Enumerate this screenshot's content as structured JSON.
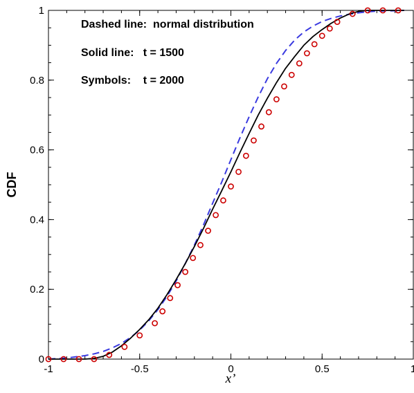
{
  "chart_data": {
    "type": "line",
    "title": "",
    "xlabel": "x’",
    "ylabel": "CDF",
    "xlim": [
      -1,
      1
    ],
    "ylim": [
      0,
      1
    ],
    "xticks": [
      -1,
      -0.5,
      0,
      0.5,
      1
    ],
    "xtick_labels": [
      "-1",
      "-0.5",
      "0",
      "0.5",
      "1"
    ],
    "yticks": [
      0,
      0.2,
      0.4,
      0.6,
      0.8,
      1
    ],
    "ytick_labels": [
      "0",
      "0.2",
      "0.4",
      "0.6",
      "0.8",
      "1"
    ],
    "grid": false,
    "annotations": [
      "Dashed line:  normal distribution",
      "Solid line:   t = 1500",
      "Symbols:    t = 2000"
    ],
    "series": [
      {
        "style": "dashed",
        "color": "#3a3ae0",
        "x": [
          -1.0,
          -0.9,
          -0.8,
          -0.75,
          -0.7,
          -0.65,
          -0.6,
          -0.55,
          -0.5,
          -0.45,
          -0.4,
          -0.35,
          -0.3,
          -0.25,
          -0.2,
          -0.15,
          -0.1,
          -0.05,
          0.0,
          0.05,
          0.1,
          0.15,
          0.2,
          0.25,
          0.3,
          0.35,
          0.4,
          0.45,
          0.5,
          0.55,
          0.6,
          0.65,
          0.7,
          0.75,
          0.8,
          0.9,
          0.95
        ],
        "y": [
          0.0,
          0.003,
          0.01,
          0.015,
          0.022,
          0.032,
          0.045,
          0.062,
          0.083,
          0.11,
          0.142,
          0.18,
          0.224,
          0.274,
          0.327,
          0.385,
          0.447,
          0.508,
          0.572,
          0.635,
          0.695,
          0.752,
          0.804,
          0.848,
          0.885,
          0.915,
          0.938,
          0.955,
          0.968,
          0.977,
          0.984,
          0.989,
          0.993,
          0.996,
          0.998,
          0.999,
          1.0
        ]
      },
      {
        "style": "solid",
        "color": "#000000",
        "x": [
          -1.0,
          -0.9,
          -0.8,
          -0.75,
          -0.7,
          -0.65,
          -0.6,
          -0.55,
          -0.5,
          -0.45,
          -0.4,
          -0.35,
          -0.3,
          -0.25,
          -0.2,
          -0.15,
          -0.1,
          -0.05,
          0.0,
          0.05,
          0.1,
          0.15,
          0.2,
          0.25,
          0.3,
          0.35,
          0.4,
          0.45,
          0.5,
          0.55,
          0.6,
          0.65,
          0.7,
          0.75,
          0.8,
          0.9,
          0.95
        ],
        "y": [
          0.0,
          0.0,
          0.0,
          0.002,
          0.008,
          0.02,
          0.038,
          0.06,
          0.085,
          0.113,
          0.146,
          0.185,
          0.228,
          0.274,
          0.323,
          0.375,
          0.43,
          0.483,
          0.537,
          0.593,
          0.647,
          0.7,
          0.748,
          0.793,
          0.834,
          0.868,
          0.9,
          0.925,
          0.945,
          0.963,
          0.978,
          0.99,
          0.997,
          1.0,
          1.0,
          1.0,
          1.0
        ]
      },
      {
        "style": "markers",
        "marker": "circle",
        "color": "#cc0000",
        "x": [
          -1.0,
          -0.917,
          -0.833,
          -0.75,
          -0.667,
          -0.583,
          -0.5,
          -0.417,
          -0.375,
          -0.333,
          -0.292,
          -0.25,
          -0.208,
          -0.167,
          -0.125,
          -0.083,
          -0.042,
          0.0,
          0.042,
          0.083,
          0.125,
          0.167,
          0.208,
          0.25,
          0.292,
          0.333,
          0.375,
          0.417,
          0.458,
          0.5,
          0.542,
          0.583,
          0.667,
          0.75,
          0.833,
          0.917
        ],
        "y": [
          0.0,
          0.0,
          0.0,
          0.0,
          0.012,
          0.035,
          0.068,
          0.103,
          0.137,
          0.175,
          0.212,
          0.25,
          0.29,
          0.327,
          0.368,
          0.413,
          0.455,
          0.495,
          0.537,
          0.583,
          0.627,
          0.667,
          0.708,
          0.745,
          0.782,
          0.815,
          0.848,
          0.877,
          0.903,
          0.927,
          0.948,
          0.967,
          0.99,
          1.0,
          1.0,
          1.0
        ]
      }
    ]
  }
}
